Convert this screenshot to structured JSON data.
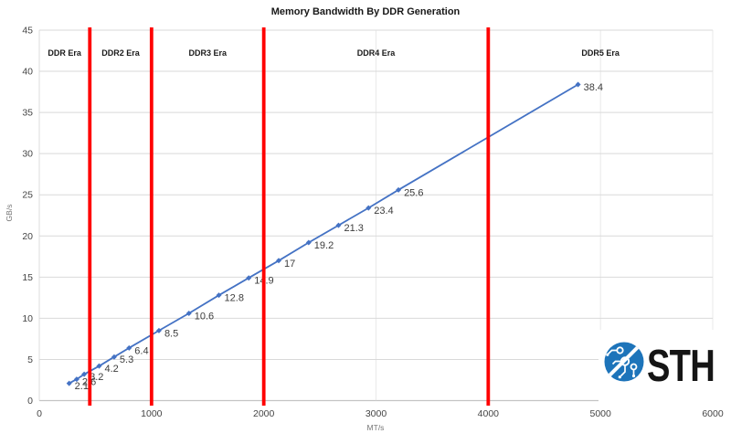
{
  "chart_data": {
    "type": "line",
    "title": "Memory Bandwidth By DDR Generation",
    "xlabel": "MT/s",
    "ylabel": "GB/s",
    "xlim": [
      0,
      6000
    ],
    "ylim": [
      0,
      45
    ],
    "x_ticks": [
      0,
      1000,
      2000,
      3000,
      4000,
      5000,
      6000
    ],
    "y_ticks": [
      0,
      5,
      10,
      15,
      20,
      25,
      30,
      35,
      40,
      45
    ],
    "grid": true,
    "legend_position": "none",
    "series": [
      {
        "name": "Memory Bandwidth",
        "color": "#4472c4",
        "x": [
          266,
          333,
          400,
          533,
          667,
          800,
          1066,
          1333,
          1600,
          1866,
          2133,
          2400,
          2666,
          2933,
          3200,
          4800
        ],
        "y": [
          2.1,
          2.6,
          3.2,
          4.2,
          5.3,
          6.4,
          8.5,
          10.6,
          12.8,
          14.9,
          17,
          19.2,
          21.3,
          23.4,
          25.6,
          38.4
        ],
        "point_labels": [
          "2.1",
          "2.6",
          "3.2",
          "4.2",
          "5.3",
          "6.4",
          "8.5",
          "10.6",
          "12.8",
          "14.9",
          "17",
          "19.2",
          "21.3",
          "23.4",
          "25.6",
          "38.4"
        ]
      }
    ],
    "era_regions": [
      {
        "label": "DDR Era",
        "from": 0,
        "to": 450
      },
      {
        "label": "DDR2 Era",
        "from": 450,
        "to": 1000
      },
      {
        "label": "DDR3 Era",
        "from": 1000,
        "to": 2000
      },
      {
        "label": "DDR4 Era",
        "from": 2000,
        "to": 4000
      },
      {
        "label": "DDR5 Era",
        "from": 4000,
        "to": 6000
      }
    ],
    "colors": {
      "line": "#4472c4",
      "marker": "#4472c4",
      "era_line": "#ff0000",
      "grid": "#d9d9d9",
      "axis_line": "#c3c3c3",
      "tick_text": "#454545",
      "data_label_text": "#3c3c3c"
    }
  },
  "logo": {
    "text": "STH",
    "circle_color": "#1d74ba",
    "text_color": "#151515"
  }
}
